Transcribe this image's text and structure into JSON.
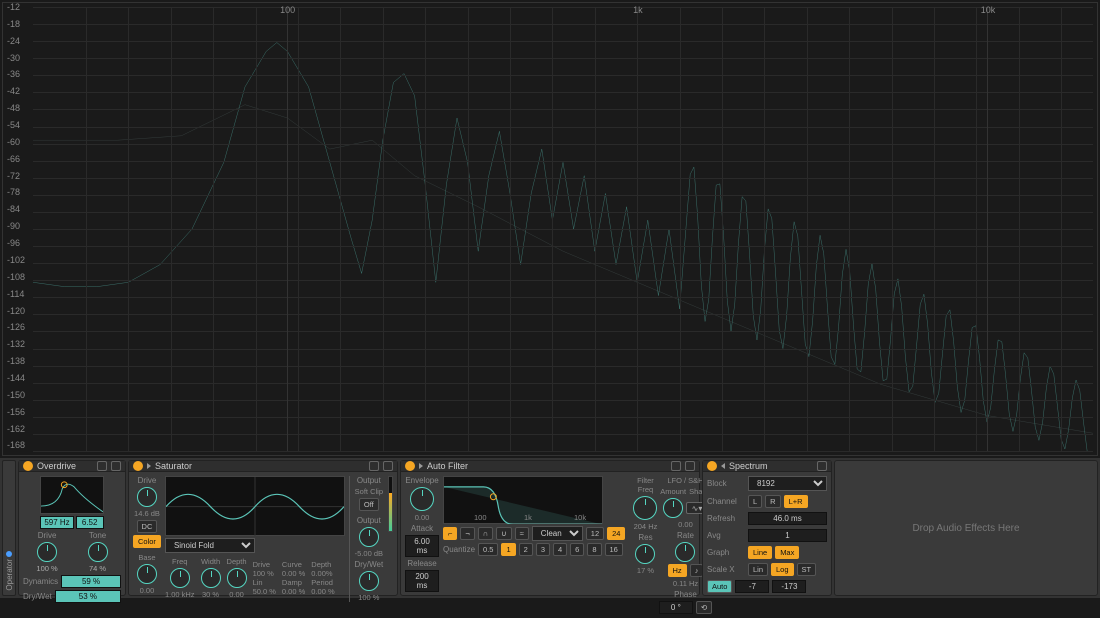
{
  "spectrum_display": {
    "y_labels": [
      "-12",
      "-18",
      "-24",
      "-30",
      "-36",
      "-42",
      "-48",
      "-54",
      "-60",
      "-66",
      "-72",
      "-78",
      "-84",
      "-90",
      "-96",
      "-102",
      "-108",
      "-114",
      "-120",
      "-126",
      "-132",
      "-138",
      "-144",
      "-150",
      "-156",
      "-162",
      "-168"
    ],
    "x_labels": [
      "100",
      "1k",
      "10k"
    ],
    "line_color": "#5bc5b8",
    "avg_color": "#5a6f6c",
    "bg_color": "#1a1a1a",
    "grid_color": "#2a2a2a",
    "ylim": [
      -170,
      -10
    ],
    "main_spectrum": [
      [
        0,
        62
      ],
      [
        3,
        63
      ],
      [
        6,
        63
      ],
      [
        9,
        62
      ],
      [
        12,
        58
      ],
      [
        15,
        50
      ],
      [
        18,
        35
      ],
      [
        20,
        18
      ],
      [
        22,
        10
      ],
      [
        23,
        8
      ],
      [
        24,
        10
      ],
      [
        26,
        18
      ],
      [
        28,
        35
      ],
      [
        30,
        52
      ],
      [
        31,
        60
      ],
      [
        32,
        48
      ],
      [
        33,
        30
      ],
      [
        34,
        17
      ],
      [
        35,
        15
      ],
      [
        36,
        20
      ],
      [
        37,
        40
      ],
      [
        38,
        62
      ],
      [
        39,
        40
      ],
      [
        40,
        25
      ],
      [
        41,
        35
      ],
      [
        42,
        55
      ],
      [
        43,
        38
      ],
      [
        44,
        28
      ],
      [
        45,
        42
      ],
      [
        46,
        58
      ],
      [
        47,
        42
      ],
      [
        48,
        32
      ],
      [
        49,
        48
      ],
      [
        50,
        35
      ],
      [
        51,
        50
      ],
      [
        52,
        38
      ],
      [
        53,
        55
      ],
      [
        54,
        42
      ],
      [
        55,
        58
      ],
      [
        56,
        45
      ],
      [
        57,
        62
      ],
      [
        58,
        48
      ],
      [
        59,
        65
      ],
      [
        60,
        50
      ],
      [
        61,
        68
      ],
      [
        62,
        53
      ],
      [
        63,
        70
      ],
      [
        64,
        55
      ],
      [
        65,
        72
      ],
      [
        66,
        58
      ],
      [
        67,
        75
      ],
      [
        68,
        60
      ],
      [
        69,
        77
      ],
      [
        70,
        62
      ],
      [
        71,
        80
      ],
      [
        72,
        65
      ],
      [
        73,
        82
      ],
      [
        74,
        67
      ],
      [
        75,
        84
      ],
      [
        76,
        70
      ],
      [
        77,
        85
      ],
      [
        78,
        72
      ],
      [
        79,
        87
      ],
      [
        80,
        74
      ],
      [
        81,
        88
      ],
      [
        82,
        76
      ],
      [
        83,
        90
      ],
      [
        84,
        78
      ],
      [
        85,
        91
      ],
      [
        86,
        80
      ],
      [
        87,
        92
      ],
      [
        88,
        82
      ],
      [
        89,
        93
      ],
      [
        90,
        84
      ],
      [
        91,
        94
      ],
      [
        92,
        86
      ],
      [
        93,
        94
      ],
      [
        94,
        92
      ],
      [
        95,
        95
      ],
      [
        96,
        90
      ],
      [
        97,
        96
      ],
      [
        98,
        93
      ],
      [
        99,
        95
      ],
      [
        100,
        96
      ]
    ],
    "avg_spectrum": [
      [
        0,
        30
      ],
      [
        8,
        30
      ],
      [
        14,
        29
      ],
      [
        20,
        22
      ],
      [
        24,
        25
      ],
      [
        28,
        32
      ],
      [
        32,
        30
      ],
      [
        36,
        38
      ],
      [
        42,
        45
      ],
      [
        50,
        55
      ],
      [
        60,
        65
      ],
      [
        70,
        75
      ],
      [
        80,
        85
      ],
      [
        90,
        92
      ],
      [
        100,
        96
      ]
    ]
  },
  "operator_tab": {
    "label": "Operator"
  },
  "overdrive": {
    "title": "Overdrive",
    "freq": "597 Hz",
    "bw": "6.52",
    "drive_label": "Drive",
    "drive": "100 %",
    "tone_label": "Tone",
    "tone": "74 %",
    "dynamics_label": "Dynamics",
    "dynamics": "59 %",
    "drywet_label": "Dry/Wet",
    "drywet": "53 %"
  },
  "saturator": {
    "title": "Saturator",
    "drive_label": "Drive",
    "drive_db": "14.6 dB",
    "dc_label": "DC",
    "color_label": "Color",
    "curve_sel": "Sinoid Fold",
    "base_label": "Base",
    "base": "0.00",
    "freq_label": "Freq",
    "freq": "1.00 kHz",
    "width_label": "Width",
    "width": "30 %",
    "depth_label": "Depth",
    "depth": "0.00",
    "drive2_label": "Drive",
    "drive2": "100 %",
    "lin_label": "Lin",
    "lin": "50.0 %",
    "curve_label": "Curve",
    "curve": "0.00 %",
    "damp_label": "Damp",
    "damp": "0.00 %",
    "depth2_label": "Depth",
    "depth2": "0.00%",
    "period_label": "Period",
    "period": "0.00 %",
    "output_label": "Output",
    "softclip": "Soft Clip",
    "off": "Off",
    "output2_label": "Output",
    "output_db": "-5.00 dB",
    "drywet_label": "Dry/Wet",
    "drywet": "100 %"
  },
  "autofilter": {
    "title": "Auto Filter",
    "envelope_label": "Envelope",
    "env_amt": "0.00",
    "attack_label": "Attack",
    "attack": "6.00 ms",
    "release_label": "Release",
    "release": "200 ms",
    "axis_100": "100",
    "axis_1k": "1k",
    "axis_10k": "10k",
    "clean_label": "Clean",
    "clean_12": "12",
    "clean_24": "24",
    "quantize_label": "Quantize",
    "q_opts": [
      "0.5",
      "1",
      "2",
      "3",
      "4",
      "6",
      "8",
      "16"
    ],
    "filter_freq_label": "Filter\nFreq",
    "filter_freq": "204 Hz",
    "res_label": "Res",
    "res": "17 %",
    "lfo_label": "LFO / S&H",
    "amount_label": "Amount",
    "shape_label": "Shape",
    "lfo_amt": "0.00",
    "rate_label": "Rate",
    "rate": "0.11 Hz",
    "hz_label": "Hz",
    "phase_label": "Phase",
    "phase": "0 °"
  },
  "spectrum_panel": {
    "title": "Spectrum",
    "block_label": "Block",
    "block": "8192",
    "channel_label": "Channel",
    "ch_l": "L",
    "ch_r": "R",
    "ch_lr": "L+R",
    "refresh_label": "Refresh",
    "refresh": "46.0 ms",
    "avg_label": "Avg",
    "avg": "1",
    "graph_label": "Graph",
    "graph_line": "Line",
    "graph_max": "Max",
    "scalex_label": "Scale X",
    "sx_lin": "Lin",
    "sx_log": "Log",
    "sx_st": "ST",
    "auto_label": "Auto",
    "range_lo": "-7",
    "range_hi": "-173"
  },
  "drop_zone": {
    "text": "Drop Audio Effects Here"
  }
}
